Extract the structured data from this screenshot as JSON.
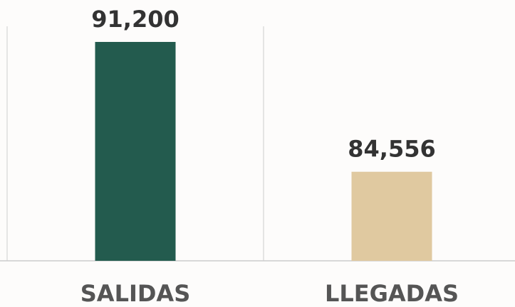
{
  "chart_data": {
    "type": "bar",
    "categories": [
      "SALIDAS",
      "LLEGADAS"
    ],
    "series": [
      {
        "values": [
          91200,
          84556
        ],
        "value_labels": [
          "91,200",
          "84,556"
        ],
        "colors": [
          "#235b4e",
          "#e0c9a0"
        ]
      }
    ],
    "ylim": [
      80000,
      92000
    ]
  }
}
